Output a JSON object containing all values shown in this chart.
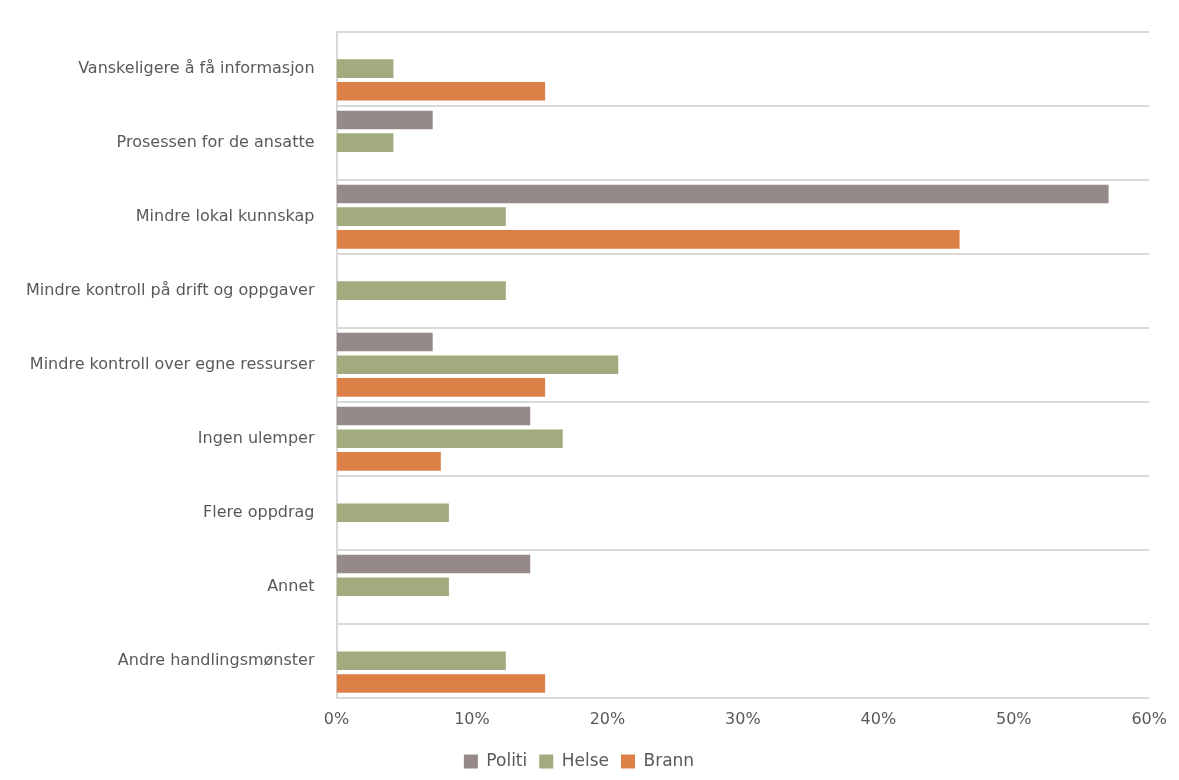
{
  "chart_data": {
    "type": "bar",
    "orientation": "horizontal",
    "categories": [
      "Vanskeligere å få informasjon",
      "Prosessen for de ansatte",
      "Mindre lokal kunnskap",
      "Mindre kontroll på drift og oppgaver",
      "Mindre kontroll over egne ressurser",
      "Ingen ulemper",
      "Flere oppdrag",
      "Annet",
      "Andre handlingsmønster"
    ],
    "series": [
      {
        "name": "Politi",
        "color": "#968a88",
        "values": [
          null,
          7.1,
          57,
          null,
          7.1,
          14.3,
          null,
          14.3,
          null
        ]
      },
      {
        "name": "Helse",
        "color": "#a3ab7e",
        "values": [
          4.2,
          4.2,
          12.5,
          12.5,
          20.8,
          16.7,
          8.3,
          8.3,
          12.5
        ]
      },
      {
        "name": "Brann",
        "color": "#dd8048",
        "values": [
          15.4,
          null,
          46,
          null,
          15.4,
          7.7,
          null,
          null,
          15.4
        ]
      }
    ],
    "xlim": [
      0,
      60
    ],
    "xticks": [
      {
        "value": 0,
        "label": "0%"
      },
      {
        "value": 10,
        "label": "10%"
      },
      {
        "value": 20,
        "label": "20%"
      },
      {
        "value": 30,
        "label": "30%"
      },
      {
        "value": 40,
        "label": "40%"
      },
      {
        "value": 50,
        "label": "50%"
      },
      {
        "value": 60,
        "label": "60%"
      }
    ],
    "grid": "y",
    "legend": "bottom"
  }
}
